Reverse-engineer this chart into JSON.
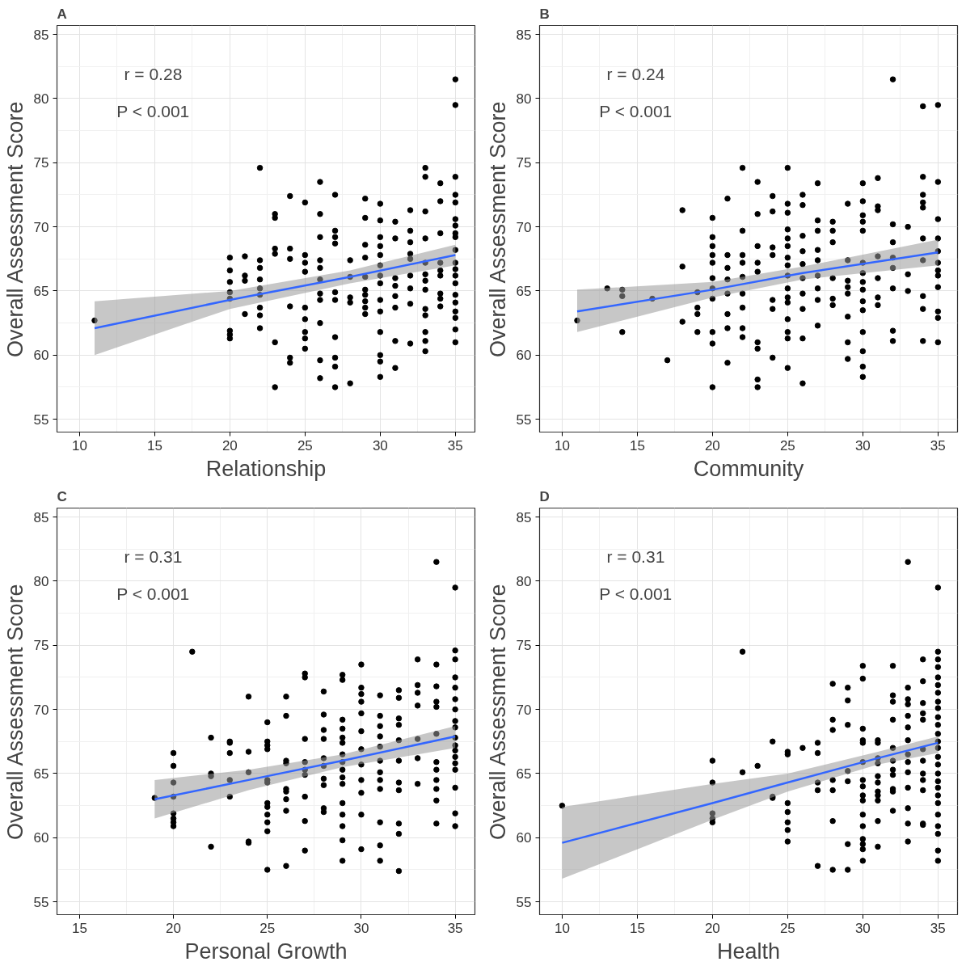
{
  "chart_data": [
    {
      "type": "scatter",
      "title": "A",
      "xlabel": "Relationship",
      "ylabel": "Overall Assessment Score",
      "xlim": [
        8.5,
        36.3
      ],
      "ylim": [
        54,
        85.7
      ],
      "xticks": [
        10,
        15,
        20,
        25,
        30,
        35
      ],
      "yticks": [
        55,
        60,
        65,
        70,
        75,
        80,
        85
      ],
      "grid": true,
      "annotations": [
        "r = 0.28",
        "P < 0.001"
      ],
      "series": [
        {
          "marker": "circle",
          "color": "#000000",
          "x": [
            11,
            20,
            20,
            20,
            20,
            20,
            20,
            20,
            20,
            21,
            21,
            21,
            21,
            22,
            22,
            22,
            22,
            22,
            22,
            22,
            22,
            22,
            23,
            23,
            23,
            23,
            23,
            23,
            24,
            24,
            24,
            24,
            24,
            24,
            25,
            25,
            25,
            25,
            25,
            25,
            25,
            25,
            25,
            26,
            26,
            26,
            26,
            26,
            26,
            26,
            26,
            26,
            26,
            26,
            27,
            27,
            27,
            27,
            27,
            27,
            27,
            27,
            27,
            27,
            28,
            28,
            28,
            28,
            28,
            29,
            29,
            29,
            29,
            29,
            29,
            29,
            29,
            29,
            29,
            30,
            30,
            30,
            30,
            30,
            30,
            30,
            30,
            30,
            30,
            30,
            30,
            30,
            30,
            31,
            31,
            31,
            31,
            31,
            31,
            31,
            31,
            32,
            32,
            32,
            32,
            32,
            32,
            32,
            32,
            32,
            33,
            33,
            33,
            33,
            33,
            33,
            33,
            33,
            33,
            33,
            33,
            33,
            33,
            34,
            34,
            34,
            34,
            34,
            34,
            34,
            34,
            34,
            35,
            35,
            35,
            35,
            35,
            35,
            35,
            35,
            35,
            35,
            35,
            35,
            35,
            35,
            35,
            35,
            35,
            35,
            35,
            35
          ],
          "values": [
            62.7,
            67.6,
            66.6,
            65.7,
            64.9,
            64.4,
            61.9,
            61.6,
            61.3,
            67.7,
            66.2,
            65.8,
            63.2,
            74.6,
            67.4,
            66.8,
            65.9,
            65.2,
            64.7,
            63.7,
            63.1,
            62.1,
            71.0,
            70.7,
            68.3,
            67.9,
            61.0,
            57.5,
            72.4,
            68.3,
            67.5,
            63.8,
            59.8,
            59.4,
            71.9,
            67.8,
            67.2,
            66.5,
            63.7,
            62.8,
            61.8,
            61.3,
            60.5,
            73.5,
            71.0,
            69.2,
            67.4,
            66.8,
            65.9,
            64.8,
            64.3,
            62.5,
            59.6,
            58.2,
            72.5,
            69.7,
            69.2,
            68.7,
            64.9,
            64.3,
            61.4,
            59.8,
            59.1,
            57.5,
            67.4,
            66.1,
            64.5,
            64.1,
            57.8,
            72.2,
            70.7,
            68.6,
            67.6,
            66.1,
            65.1,
            64.7,
            64.2,
            63.7,
            63.2,
            71.8,
            70.5,
            69.2,
            68.5,
            67.8,
            67.0,
            66.2,
            65.6,
            64.3,
            63.4,
            61.8,
            60.0,
            59.5,
            58.3,
            70.4,
            69.1,
            66.0,
            65.4,
            64.6,
            63.7,
            61.1,
            59.0,
            71.3,
            69.7,
            68.8,
            67.9,
            67.5,
            66.2,
            65.2,
            64.0,
            60.9,
            74.6,
            73.9,
            71.2,
            69.1,
            67.2,
            66.3,
            65.8,
            65.1,
            63.6,
            63.1,
            61.8,
            61.1,
            60.3,
            73.4,
            72.0,
            69.5,
            67.2,
            66.6,
            66.2,
            64.8,
            64.4,
            63.8,
            81.5,
            79.5,
            73.9,
            72.5,
            71.9,
            70.6,
            70.1,
            69.5,
            69.2,
            68.2,
            67.2,
            66.7,
            66.2,
            65.6,
            64.7,
            64.1,
            63.4,
            62.9,
            62.0,
            61.0
          ]
        },
        {
          "type": "line",
          "color": "#3366ff",
          "x": [
            11,
            20,
            28,
            35
          ],
          "values": [
            62.1,
            64.3,
            66.1,
            67.8
          ],
          "lower": [
            60.0,
            63.6,
            65.6,
            67.0
          ],
          "upper": [
            64.2,
            65.0,
            66.6,
            68.6
          ]
        }
      ]
    },
    {
      "type": "scatter",
      "title": "B",
      "xlabel": "Community",
      "ylabel": "Overall Assessment Score",
      "xlim": [
        8.5,
        36.3
      ],
      "ylim": [
        54,
        85.7
      ],
      "xticks": [
        10,
        15,
        20,
        25,
        30,
        35
      ],
      "yticks": [
        55,
        60,
        65,
        70,
        75,
        80,
        85
      ],
      "grid": true,
      "annotations": [
        "r = 0.24",
        "P < 0.001"
      ],
      "series": [
        {
          "marker": "circle",
          "color": "#000000",
          "x": [
            11,
            13,
            14,
            14,
            14,
            16,
            17,
            18,
            18,
            18,
            19,
            19,
            19,
            19,
            20,
            20,
            20,
            20,
            20,
            20,
            20,
            20,
            20,
            20,
            20,
            21,
            21,
            21,
            21,
            21,
            21,
            21,
            21,
            22,
            22,
            22,
            22,
            22,
            22,
            22,
            22,
            22,
            23,
            23,
            23,
            23,
            23,
            23,
            23,
            23,
            23,
            24,
            24,
            24,
            24,
            24,
            24,
            24,
            25,
            25,
            25,
            25,
            25,
            25,
            25,
            25,
            25,
            25,
            25,
            25,
            25,
            25,
            25,
            25,
            26,
            26,
            26,
            26,
            26,
            26,
            26,
            26,
            26,
            26,
            27,
            27,
            27,
            27,
            27,
            27,
            27,
            27,
            27,
            28,
            28,
            28,
            28,
            28,
            28,
            29,
            29,
            29,
            29,
            29,
            29,
            29,
            29,
            30,
            30,
            30,
            30,
            30,
            30,
            30,
            30,
            30,
            30,
            30,
            30,
            30,
            30,
            30,
            31,
            31,
            31,
            31,
            31,
            31,
            31,
            32,
            32,
            32,
            32,
            32,
            32,
            32,
            32,
            33,
            33,
            33,
            34,
            34,
            34,
            34,
            34,
            34,
            34,
            34,
            34,
            34,
            35,
            35,
            35,
            35,
            35,
            35,
            35,
            35,
            35,
            35,
            35,
            35
          ],
          "values": [
            62.7,
            65.2,
            65.1,
            64.6,
            61.8,
            64.4,
            59.6,
            71.3,
            66.9,
            62.6,
            64.9,
            63.7,
            63.2,
            61.8,
            70.7,
            69.2,
            68.5,
            67.8,
            67.2,
            66.0,
            65.2,
            64.4,
            61.8,
            60.9,
            57.5,
            72.2,
            67.8,
            66.8,
            65.9,
            64.8,
            63.2,
            62.1,
            59.4,
            74.6,
            69.7,
            67.8,
            67.2,
            66.1,
            64.8,
            63.7,
            62.1,
            61.4,
            73.5,
            71.0,
            68.5,
            67.2,
            66.5,
            61.0,
            60.5,
            58.1,
            57.5,
            72.4,
            71.2,
            68.4,
            67.8,
            64.3,
            63.6,
            59.8,
            74.6,
            71.8,
            71.1,
            69.8,
            69.1,
            68.5,
            67.6,
            67.0,
            66.2,
            65.2,
            64.5,
            64.1,
            62.8,
            61.8,
            61.3,
            59.0,
            72.5,
            71.7,
            69.3,
            68.1,
            67.1,
            66.0,
            64.8,
            63.6,
            61.3,
            57.8,
            73.4,
            70.5,
            69.7,
            68.2,
            67.4,
            66.2,
            65.2,
            64.3,
            62.3,
            70.4,
            69.7,
            68.8,
            66.0,
            64.4,
            63.9,
            71.8,
            67.4,
            65.8,
            65.3,
            64.8,
            63.0,
            61.0,
            59.7,
            73.4,
            72.0,
            70.9,
            70.4,
            69.7,
            67.2,
            66.4,
            65.7,
            65.1,
            64.2,
            63.5,
            61.8,
            60.3,
            59.1,
            58.3,
            73.8,
            71.6,
            71.3,
            67.7,
            66.0,
            64.5,
            63.9,
            81.5,
            70.2,
            68.8,
            67.6,
            66.8,
            65.2,
            61.9,
            61.1,
            70.0,
            66.3,
            65.0,
            79.4,
            73.9,
            72.5,
            71.9,
            71.5,
            69.1,
            67.4,
            64.6,
            63.6,
            61.1,
            79.5,
            73.5,
            70.6,
            69.1,
            68.1,
            67.2,
            66.6,
            66.2,
            65.3,
            63.4,
            62.9,
            61.0
          ]
        },
        {
          "type": "line",
          "color": "#3366ff",
          "x": [
            11,
            20,
            26,
            35
          ],
          "values": [
            63.4,
            65.1,
            66.4,
            68.0
          ],
          "lower": [
            61.8,
            64.5,
            65.9,
            67.0
          ],
          "upper": [
            65.1,
            65.7,
            66.9,
            69.0
          ]
        }
      ]
    },
    {
      "type": "scatter",
      "title": "C",
      "xlabel": "Personal Growth",
      "ylabel": "Overall Assessment Score",
      "xlim": [
        13.8,
        36.05
      ],
      "ylim": [
        54,
        85.7
      ],
      "xticks": [
        15,
        20,
        25,
        30,
        35
      ],
      "yticks": [
        55,
        60,
        65,
        70,
        75,
        80,
        85
      ],
      "grid": true,
      "annotations": [
        "r = 0.31",
        "P < 0.001"
      ],
      "series": [
        {
          "marker": "circle",
          "color": "#000000",
          "x": [
            19,
            20,
            20,
            20,
            20,
            20,
            20,
            20,
            20,
            21,
            22,
            22,
            22,
            22,
            23,
            23,
            23,
            23,
            23,
            24,
            24,
            24,
            24,
            24,
            25,
            25,
            25,
            25,
            25,
            25,
            25,
            25,
            25,
            25,
            25,
            25,
            26,
            26,
            26,
            26,
            26,
            26,
            26,
            26,
            26,
            27,
            27,
            27,
            27,
            27,
            27,
            27,
            27,
            27,
            28,
            28,
            28,
            28,
            28,
            28,
            28,
            28,
            28,
            28,
            29,
            29,
            29,
            29,
            29,
            29,
            29,
            29,
            29,
            29,
            29,
            29,
            29,
            29,
            29,
            29,
            30,
            30,
            30,
            30,
            30,
            30,
            30,
            30,
            30,
            30,
            30,
            30,
            31,
            31,
            31,
            31,
            31,
            31,
            31,
            31,
            31,
            31,
            31,
            31,
            32,
            32,
            32,
            32,
            32,
            32,
            32,
            32,
            32,
            32,
            32,
            33,
            33,
            33,
            33,
            33,
            33,
            33,
            34,
            34,
            34,
            34,
            34,
            34,
            34,
            34,
            34,
            34,
            34,
            34,
            35,
            35,
            35,
            35,
            35,
            35,
            35,
            35,
            35,
            35,
            35,
            35,
            35,
            35,
            35,
            35,
            35,
            35
          ],
          "values": [
            63.1,
            66.6,
            65.6,
            64.3,
            63.2,
            61.9,
            61.5,
            61.2,
            60.9,
            74.5,
            67.8,
            65.0,
            64.8,
            59.3,
            67.5,
            67.4,
            66.6,
            64.5,
            63.2,
            71.0,
            66.7,
            65.1,
            59.7,
            59.6,
            69.0,
            67.5,
            67.2,
            66.9,
            64.5,
            64.3,
            62.7,
            62.4,
            61.8,
            61.2,
            60.5,
            57.5,
            71.0,
            69.5,
            66.0,
            65.8,
            63.8,
            63.6,
            63.0,
            62.1,
            57.8,
            72.8,
            72.5,
            67.7,
            65.9,
            65.3,
            64.9,
            63.2,
            61.3,
            59.0,
            71.4,
            69.6,
            68.4,
            67.7,
            66.2,
            65.6,
            64.6,
            64.1,
            62.3,
            62.0,
            72.7,
            72.3,
            69.2,
            68.5,
            67.8,
            67.4,
            66.5,
            65.9,
            65.3,
            64.7,
            64.2,
            62.7,
            61.8,
            60.9,
            59.8,
            58.2,
            73.5,
            71.7,
            71.2,
            70.6,
            69.7,
            68.3,
            66.9,
            65.7,
            64.5,
            63.5,
            61.8,
            59.1,
            71.1,
            69.5,
            68.7,
            67.9,
            67.1,
            66.0,
            65.1,
            64.5,
            63.8,
            61.2,
            59.4,
            58.2,
            71.5,
            70.9,
            69.3,
            68.8,
            67.6,
            66.0,
            64.3,
            63.7,
            61.1,
            60.3,
            57.4,
            73.9,
            71.9,
            71.3,
            70.3,
            67.7,
            66.2,
            64.2,
            81.5,
            73.5,
            71.8,
            70.6,
            70.2,
            68.1,
            65.9,
            65.3,
            64.5,
            63.8,
            62.9,
            61.1,
            79.5,
            74.6,
            73.9,
            72.5,
            71.7,
            70.8,
            70.0,
            69.1,
            68.6,
            67.8,
            67.2,
            66.8,
            66.3,
            65.8,
            65.3,
            63.9,
            61.9,
            60.9
          ]
        },
        {
          "type": "line",
          "color": "#3366ff",
          "x": [
            19,
            24,
            29,
            35
          ],
          "values": [
            63.0,
            64.5,
            66.0,
            67.9
          ],
          "lower": [
            61.5,
            63.7,
            65.5,
            67.0
          ],
          "upper": [
            64.5,
            65.3,
            66.5,
            68.7
          ]
        }
      ]
    },
    {
      "type": "scatter",
      "title": "D",
      "xlabel": "Health",
      "ylabel": "Overall Assessment Score",
      "xlim": [
        8.5,
        36.3
      ],
      "ylim": [
        54,
        85.7
      ],
      "xticks": [
        10,
        15,
        20,
        25,
        30,
        35
      ],
      "yticks": [
        55,
        60,
        65,
        70,
        75,
        80,
        85
      ],
      "grid": true,
      "annotations": [
        "r = 0.31",
        "P < 0.001"
      ],
      "series": [
        {
          "marker": "circle",
          "color": "#000000",
          "x": [
            10,
            20,
            20,
            20,
            20,
            20,
            22,
            22,
            23,
            24,
            24,
            24,
            25,
            25,
            25,
            25,
            25,
            25,
            25,
            26,
            27,
            27,
            27,
            27,
            27,
            28,
            28,
            28,
            28,
            28,
            28,
            28,
            29,
            29,
            29,
            29,
            29,
            29,
            29,
            30,
            30,
            30,
            30,
            30,
            30,
            30,
            30,
            30,
            30,
            30,
            30,
            30,
            30,
            30,
            30,
            31,
            31,
            31,
            31,
            31,
            31,
            31,
            31,
            31,
            31,
            31,
            32,
            32,
            32,
            32,
            32,
            32,
            32,
            32,
            32,
            32,
            32,
            33,
            33,
            33,
            33,
            33,
            33,
            33,
            33,
            33,
            33,
            33,
            33,
            33,
            33,
            34,
            34,
            34,
            34,
            34,
            34,
            34,
            34,
            34,
            34,
            34,
            34,
            35,
            35,
            35,
            35,
            35,
            35,
            35,
            35,
            35,
            35,
            35,
            35,
            35,
            35,
            35,
            35,
            35,
            35,
            35,
            35,
            35,
            35,
            35,
            35,
            35,
            35
          ],
          "values": [
            62.5,
            66.0,
            64.3,
            61.9,
            61.5,
            61.2,
            74.5,
            65.1,
            65.6,
            67.5,
            63.2,
            63.1,
            66.7,
            66.5,
            62.7,
            62.0,
            61.2,
            60.6,
            59.7,
            67.0,
            67.4,
            66.6,
            64.3,
            63.7,
            57.8,
            72.0,
            69.2,
            68.4,
            64.5,
            63.7,
            61.3,
            57.5,
            71.7,
            70.7,
            68.8,
            65.2,
            64.4,
            59.5,
            57.5,
            73.4,
            72.4,
            68.5,
            67.6,
            67.4,
            65.9,
            64.5,
            64.0,
            63.3,
            62.9,
            61.8,
            60.9,
            59.9,
            59.5,
            59.1,
            58.2,
            67.6,
            67.4,
            66.2,
            65.8,
            64.8,
            64.3,
            63.6,
            63.3,
            62.9,
            61.3,
            59.3,
            73.4,
            71.1,
            70.6,
            69.2,
            67.0,
            66.0,
            65.3,
            64.9,
            63.8,
            63.6,
            62.1,
            81.5,
            71.7,
            70.8,
            70.4,
            69.5,
            68.6,
            67.6,
            66.5,
            65.9,
            65.1,
            63.9,
            62.3,
            61.1,
            59.7,
            73.9,
            72.2,
            70.5,
            69.7,
            69.2,
            66.9,
            66.0,
            65.0,
            64.5,
            63.7,
            61.1,
            61.0,
            79.5,
            74.5,
            73.9,
            73.3,
            72.5,
            71.9,
            71.3,
            70.6,
            70.1,
            69.4,
            68.8,
            68.1,
            67.5,
            67.0,
            66.3,
            65.7,
            65.0,
            64.4,
            63.9,
            63.3,
            62.7,
            61.8,
            60.9,
            60.3,
            59.0,
            58.2
          ]
        },
        {
          "type": "line",
          "color": "#3366ff",
          "x": [
            10,
            20,
            25,
            31,
            35
          ],
          "values": [
            59.6,
            62.7,
            64.3,
            66.2,
            67.4
          ],
          "lower": [
            56.8,
            61.4,
            63.6,
            65.7,
            66.6
          ],
          "upper": [
            62.4,
            64.2,
            65.0,
            66.7,
            67.9
          ]
        }
      ]
    }
  ]
}
